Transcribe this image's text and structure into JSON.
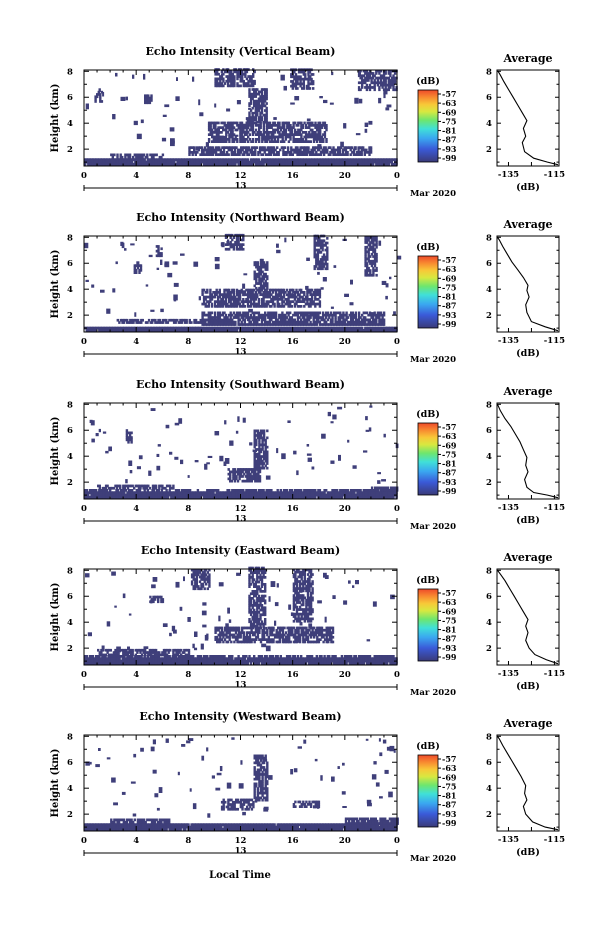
{
  "chart_data": [
    {
      "type": "heatmap",
      "title": "Echo Intensity (Vertical Beam)",
      "ylabel": "Height (km)",
      "x_ticks": [
        "0",
        "4",
        "8",
        "12",
        "16",
        "20",
        "0"
      ],
      "xlim": [
        0,
        24
      ],
      "y_ticks": [
        "2",
        "4",
        "6",
        "8"
      ],
      "ylim": [
        0.7,
        8.1
      ],
      "date_label": "13",
      "month_label": "Mar 2020",
      "colorbar": {
        "unit": "(dB)",
        "ticks": [
          "-57",
          "-63",
          "-69",
          "-75",
          "-81",
          "-87",
          "-93",
          "-99"
        ]
      },
      "profile": {
        "title": "Average",
        "xlabel": "(dB)",
        "x_ticks": [
          "-135",
          "-115"
        ],
        "xlim": [
          -140,
          -113
        ],
        "y_ticks": [
          "2",
          "4",
          "6",
          "8"
        ],
        "ylim": [
          0.7,
          8.1
        ],
        "points": [
          [
            -113.5,
            0.8
          ],
          [
            -118,
            1.0
          ],
          [
            -124,
            1.3
          ],
          [
            -128,
            1.8
          ],
          [
            -129,
            2.5
          ],
          [
            -127.5,
            3.0
          ],
          [
            -128.5,
            3.6
          ],
          [
            -127,
            4.2
          ],
          [
            -129,
            4.8
          ],
          [
            -131,
            5.4
          ],
          [
            -133,
            6.0
          ],
          [
            -135,
            6.6
          ],
          [
            -137,
            7.2
          ],
          [
            -138.5,
            7.7
          ],
          [
            -139.5,
            8.0
          ]
        ]
      },
      "echo_regions": [
        {
          "t0": 0.0,
          "t1": 24.0,
          "h0": 0.75,
          "h1": 1.15
        },
        {
          "t0": 2.0,
          "t1": 6.0,
          "h0": 1.3,
          "h1": 1.6
        },
        {
          "t0": 8.0,
          "t1": 22.0,
          "h0": 1.5,
          "h1": 2.2
        },
        {
          "t0": 9.5,
          "t1": 18.5,
          "h0": 2.5,
          "h1": 4.1
        },
        {
          "t0": 12.6,
          "t1": 14.0,
          "h0": 4.0,
          "h1": 6.6
        },
        {
          "t0": 10.0,
          "t1": 13.0,
          "h0": 6.8,
          "h1": 8.1
        },
        {
          "t0": 15.8,
          "t1": 17.6,
          "h0": 6.6,
          "h1": 8.1
        },
        {
          "t0": 21.0,
          "t1": 24.0,
          "h0": 6.5,
          "h1": 8.1
        },
        {
          "t0": 0.8,
          "t1": 1.3,
          "h0": 5.6,
          "h1": 6.4
        },
        {
          "t0": 4.6,
          "t1": 5.1,
          "h0": 5.5,
          "h1": 6.1
        }
      ]
    },
    {
      "type": "heatmap",
      "title": "Echo Intensity (Northward Beam)",
      "ylabel": "Height (km)",
      "x_ticks": [
        "0",
        "4",
        "8",
        "12",
        "16",
        "20",
        "0"
      ],
      "xlim": [
        0,
        24
      ],
      "y_ticks": [
        "2",
        "4",
        "6",
        "8"
      ],
      "ylim": [
        0.7,
        8.1
      ],
      "date_label": "13",
      "month_label": "Mar 2020",
      "colorbar": {
        "unit": "(dB)",
        "ticks": [
          "-57",
          "-63",
          "-69",
          "-75",
          "-81",
          "-87",
          "-93",
          "-99"
        ]
      },
      "profile": {
        "title": "Average",
        "xlabel": "(dB)",
        "x_ticks": [
          "-135",
          "-115"
        ],
        "xlim": [
          -140,
          -113
        ],
        "y_ticks": [
          "2",
          "4",
          "6",
          "8"
        ],
        "ylim": [
          0.7,
          8.1
        ],
        "points": [
          [
            -113.5,
            0.8
          ],
          [
            -119,
            1.1
          ],
          [
            -125,
            1.5
          ],
          [
            -127,
            2.2
          ],
          [
            -127.5,
            2.8
          ],
          [
            -126,
            3.4
          ],
          [
            -127,
            3.9
          ],
          [
            -126.5,
            4.3
          ],
          [
            -128.5,
            4.9
          ],
          [
            -131,
            5.5
          ],
          [
            -133.5,
            6.1
          ],
          [
            -135.5,
            6.7
          ],
          [
            -137.5,
            7.3
          ],
          [
            -139,
            7.8
          ],
          [
            -139.8,
            8.0
          ]
        ]
      },
      "echo_regions": [
        {
          "t0": 0.0,
          "t1": 24.0,
          "h0": 0.75,
          "h1": 1.05
        },
        {
          "t0": 2.5,
          "t1": 11.0,
          "h0": 1.35,
          "h1": 1.6
        },
        {
          "t0": 9.0,
          "t1": 23.0,
          "h0": 1.2,
          "h1": 2.2
        },
        {
          "t0": 9.0,
          "t1": 18.0,
          "h0": 2.6,
          "h1": 3.9
        },
        {
          "t0": 13.0,
          "t1": 14.0,
          "h0": 4.0,
          "h1": 6.3
        },
        {
          "t0": 10.8,
          "t1": 12.2,
          "h0": 7.0,
          "h1": 8.1
        },
        {
          "t0": 17.6,
          "t1": 18.6,
          "h0": 5.5,
          "h1": 8.1
        },
        {
          "t0": 21.5,
          "t1": 22.4,
          "h0": 5.0,
          "h1": 8.0
        },
        {
          "t0": 3.8,
          "t1": 4.4,
          "h0": 5.2,
          "h1": 5.8
        },
        {
          "t0": 5.5,
          "t1": 5.9,
          "h0": 6.5,
          "h1": 7.3
        }
      ]
    },
    {
      "type": "heatmap",
      "title": "Echo Intensity (Southward Beam)",
      "ylabel": "Height (km)",
      "x_ticks": [
        "0",
        "4",
        "8",
        "12",
        "16",
        "20",
        "0"
      ],
      "xlim": [
        0,
        24
      ],
      "y_ticks": [
        "2",
        "4",
        "6",
        "8"
      ],
      "ylim": [
        0.7,
        8.1
      ],
      "date_label": "13",
      "month_label": "Mar 2020",
      "colorbar": {
        "unit": "(dB)",
        "ticks": [
          "-57",
          "-63",
          "-69",
          "-75",
          "-81",
          "-87",
          "-93",
          "-99"
        ]
      },
      "profile": {
        "title": "Average",
        "xlabel": "(dB)",
        "x_ticks": [
          "-135",
          "-115"
        ],
        "xlim": [
          -140,
          -113
        ],
        "y_ticks": [
          "2",
          "4",
          "6",
          "8"
        ],
        "ylim": [
          0.7,
          8.1
        ],
        "points": [
          [
            -113.5,
            0.8
          ],
          [
            -118,
            1.0
          ],
          [
            -124,
            1.2
          ],
          [
            -127,
            1.6
          ],
          [
            -128,
            2.2
          ],
          [
            -126.5,
            2.8
          ],
          [
            -127.5,
            3.3
          ],
          [
            -127,
            3.9
          ],
          [
            -128.5,
            4.5
          ],
          [
            -130,
            5.1
          ],
          [
            -132,
            5.7
          ],
          [
            -134,
            6.3
          ],
          [
            -136.5,
            6.9
          ],
          [
            -138.5,
            7.5
          ],
          [
            -139.8,
            8.0
          ]
        ]
      },
      "echo_regions": [
        {
          "t0": 0.0,
          "t1": 24.0,
          "h0": 0.75,
          "h1": 1.3
        },
        {
          "t0": 1.0,
          "t1": 7.0,
          "h0": 1.45,
          "h1": 1.7
        },
        {
          "t0": 11.0,
          "t1": 13.5,
          "h0": 2.0,
          "h1": 3.0
        },
        {
          "t0": 13.0,
          "t1": 14.0,
          "h0": 3.0,
          "h1": 6.0
        },
        {
          "t0": 3.2,
          "t1": 3.6,
          "h0": 5.0,
          "h1": 6.0
        },
        {
          "t0": 22.0,
          "t1": 24.0,
          "h0": 1.3,
          "h1": 1.6
        }
      ]
    },
    {
      "type": "heatmap",
      "title": "Echo Intensity (Eastward Beam)",
      "ylabel": "Height (km)",
      "x_ticks": [
        "0",
        "4",
        "8",
        "12",
        "16",
        "20",
        "0"
      ],
      "xlim": [
        0,
        24
      ],
      "y_ticks": [
        "2",
        "4",
        "6",
        "8"
      ],
      "ylim": [
        0.7,
        8.1
      ],
      "date_label": "13",
      "month_label": "Mar 2020",
      "colorbar": {
        "unit": "(dB)",
        "ticks": [
          "-57",
          "-63",
          "-69",
          "-75",
          "-81",
          "-87",
          "-93",
          "-99"
        ]
      },
      "profile": {
        "title": "Average",
        "xlabel": "(dB)",
        "x_ticks": [
          "-135",
          "-115"
        ],
        "xlim": [
          -140,
          -113
        ],
        "y_ticks": [
          "2",
          "4",
          "6",
          "8"
        ],
        "ylim": [
          0.7,
          8.1
        ],
        "points": [
          [
            -113.5,
            0.8
          ],
          [
            -118.5,
            1.1
          ],
          [
            -123.5,
            1.5
          ],
          [
            -126,
            2.0
          ],
          [
            -127.5,
            2.6
          ],
          [
            -126.5,
            3.2
          ],
          [
            -127.5,
            3.7
          ],
          [
            -126.5,
            4.2
          ],
          [
            -128.5,
            4.8
          ],
          [
            -130.5,
            5.4
          ],
          [
            -132.5,
            6.0
          ],
          [
            -134.5,
            6.6
          ],
          [
            -136.5,
            7.2
          ],
          [
            -138.5,
            7.7
          ],
          [
            -139.8,
            8.0
          ]
        ]
      },
      "echo_regions": [
        {
          "t0": 0.0,
          "t1": 24.0,
          "h0": 0.75,
          "h1": 1.4
        },
        {
          "t0": 1.0,
          "t1": 8.0,
          "h0": 1.4,
          "h1": 1.9
        },
        {
          "t0": 10.0,
          "t1": 19.0,
          "h0": 2.4,
          "h1": 3.6
        },
        {
          "t0": 12.6,
          "t1": 13.8,
          "h0": 3.6,
          "h1": 8.1
        },
        {
          "t0": 8.2,
          "t1": 9.6,
          "h0": 6.5,
          "h1": 8.1
        },
        {
          "t0": 16.0,
          "t1": 17.5,
          "h0": 4.0,
          "h1": 8.0
        },
        {
          "t0": 5.0,
          "t1": 6.0,
          "h0": 5.5,
          "h1": 6.0
        }
      ]
    },
    {
      "type": "heatmap",
      "title": "Echo Intensity (Westward Beam)",
      "ylabel": "Height (km)",
      "x_ticks": [
        "0",
        "4",
        "8",
        "12",
        "16",
        "20",
        "0"
      ],
      "xlim": [
        0,
        24
      ],
      "y_ticks": [
        "2",
        "4",
        "6",
        "8"
      ],
      "ylim": [
        0.7,
        8.1
      ],
      "date_label": "13",
      "month_label": "Mar 2020",
      "colorbar": {
        "unit": "(dB)",
        "ticks": [
          "-57",
          "-63",
          "-69",
          "-75",
          "-81",
          "-87",
          "-93",
          "-99"
        ]
      },
      "profile": {
        "title": "Average",
        "xlabel": "(dB)",
        "x_ticks": [
          "-135",
          "-115"
        ],
        "xlim": [
          -140,
          -113
        ],
        "y_ticks": [
          "2",
          "4",
          "6",
          "8"
        ],
        "ylim": [
          0.7,
          8.1
        ],
        "points": [
          [
            -113.5,
            0.8
          ],
          [
            -119,
            1.0
          ],
          [
            -124.5,
            1.4
          ],
          [
            -127.5,
            2.0
          ],
          [
            -128.5,
            2.6
          ],
          [
            -127,
            3.1
          ],
          [
            -128,
            3.6
          ],
          [
            -127.5,
            4.2
          ],
          [
            -129.5,
            4.9
          ],
          [
            -131.5,
            5.5
          ],
          [
            -133.5,
            6.1
          ],
          [
            -135.5,
            6.7
          ],
          [
            -137.5,
            7.3
          ],
          [
            -139,
            7.8
          ],
          [
            -139.8,
            8.0
          ]
        ]
      },
      "echo_regions": [
        {
          "t0": 0.0,
          "t1": 24.0,
          "h0": 0.75,
          "h1": 1.2
        },
        {
          "t0": 2.0,
          "t1": 6.5,
          "h0": 1.3,
          "h1": 1.6
        },
        {
          "t0": 10.5,
          "t1": 13.0,
          "h0": 2.3,
          "h1": 3.2
        },
        {
          "t0": 13.0,
          "t1": 14.0,
          "h0": 3.0,
          "h1": 6.5
        },
        {
          "t0": 16.0,
          "t1": 18.0,
          "h0": 2.5,
          "h1": 3.0
        },
        {
          "t0": 20.0,
          "t1": 24.0,
          "h0": 1.2,
          "h1": 1.6
        }
      ]
    }
  ],
  "footer": {
    "xlabel": "Local Time"
  },
  "colors": {
    "echo": "#3f3f7a",
    "colorbar": [
      "#3a3a78",
      "#3a5ad8",
      "#3aa8f0",
      "#40e0d8",
      "#6ee66e",
      "#d8e840",
      "#f8c838",
      "#f88a30",
      "#ee4a2a"
    ]
  }
}
